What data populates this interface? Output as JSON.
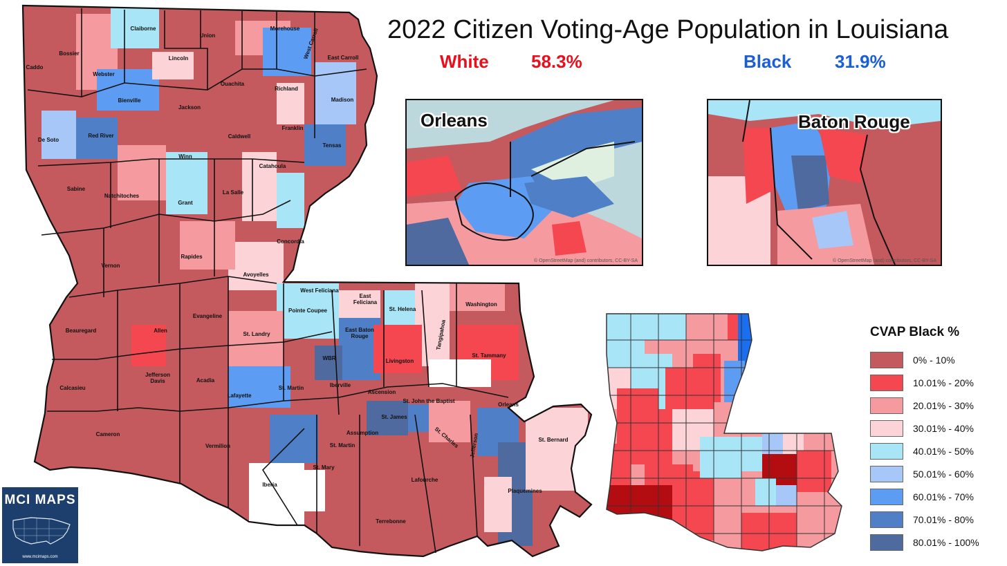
{
  "title": "2022 Citizen Voting-Age Population in Louisiana",
  "stats": {
    "white": {
      "label": "White",
      "value": "58.3%",
      "color": "#e8101c"
    },
    "black": {
      "label": "Black",
      "value": "31.9%",
      "color": "#1a5fd6"
    }
  },
  "insets": [
    {
      "label": "Orleans",
      "attribution": "© OpenStreetMap (and) contributors, CC-BY-SA"
    },
    {
      "label": "Baton Rouge",
      "attribution": "© OpenStreetMap (and) contributors, CC-BY-SA"
    }
  ],
  "legend": {
    "title": "CVAP Black  %",
    "items": [
      {
        "label": "0% - 10%",
        "color": "#c45a5e"
      },
      {
        "label": "10.01% - 20%",
        "color": "#f5474f"
      },
      {
        "label": "20.01% - 30%",
        "color": "#f59a9f"
      },
      {
        "label": "30.01% - 40%",
        "color": "#fcd3d6"
      },
      {
        "label": "40.01% - 50%",
        "color": "#a8e6f7"
      },
      {
        "label": "50.01% - 60%",
        "color": "#a6c7f7"
      },
      {
        "label": "60.01% - 70%",
        "color": "#5c9cf2"
      },
      {
        "label": "70.01% - 80%",
        "color": "#4f80c7"
      },
      {
        "label": "80.01% - 100%",
        "color": "#4f6a9e"
      }
    ]
  },
  "parishes": [
    {
      "name": "Caddo"
    },
    {
      "name": "Bossier"
    },
    {
      "name": "Webster"
    },
    {
      "name": "Claiborne"
    },
    {
      "name": "Union"
    },
    {
      "name": "Morehouse"
    },
    {
      "name": "West Carroll"
    },
    {
      "name": "East Carroll"
    },
    {
      "name": "Lincoln"
    },
    {
      "name": "Ouachita"
    },
    {
      "name": "Richland"
    },
    {
      "name": "Madison"
    },
    {
      "name": "Bienville"
    },
    {
      "name": "Jackson"
    },
    {
      "name": "Red River"
    },
    {
      "name": "De Soto"
    },
    {
      "name": "Caldwell"
    },
    {
      "name": "Franklin"
    },
    {
      "name": "Tensas"
    },
    {
      "name": "Winn"
    },
    {
      "name": "La Salle"
    },
    {
      "name": "Catahoula"
    },
    {
      "name": "Sabine"
    },
    {
      "name": "Natchitoches"
    },
    {
      "name": "Grant"
    },
    {
      "name": "Concordia"
    },
    {
      "name": "Rapides"
    },
    {
      "name": "Vernon"
    },
    {
      "name": "Avoyelles"
    },
    {
      "name": "West Feliciana"
    },
    {
      "name": "East\nFeliciana"
    },
    {
      "name": "St. Helena"
    },
    {
      "name": "Tangipahoa"
    },
    {
      "name": "Washington"
    },
    {
      "name": "Evangeline"
    },
    {
      "name": "Pointe Coupee"
    },
    {
      "name": "East Baton\nRouge"
    },
    {
      "name": "Beauregard"
    },
    {
      "name": "Allen"
    },
    {
      "name": "St. Landry"
    },
    {
      "name": "WBR"
    },
    {
      "name": "Livingston"
    },
    {
      "name": "St. Tammany"
    },
    {
      "name": "Calcasieu"
    },
    {
      "name": "Jefferson\nDavis"
    },
    {
      "name": "Acadia"
    },
    {
      "name": "Lafayette"
    },
    {
      "name": "St. Martin"
    },
    {
      "name": "Iberville"
    },
    {
      "name": "Ascension"
    },
    {
      "name": "St. John the Baptist"
    },
    {
      "name": "Orleans"
    },
    {
      "name": "St. James"
    },
    {
      "name": "Cameron"
    },
    {
      "name": "Vermilion"
    },
    {
      "name": "Assumption"
    },
    {
      "name": "St. Charles"
    },
    {
      "name": "St. Bernard"
    },
    {
      "name": "St. Martin"
    },
    {
      "name": "Jefferson"
    },
    {
      "name": "St. Mary"
    },
    {
      "name": "Iberia"
    },
    {
      "name": "Lafourche"
    },
    {
      "name": "Plaquemines"
    },
    {
      "name": "Terrebonne"
    }
  ],
  "badge": {
    "title": "MCI MAPS",
    "url": "www.mcimaps.com"
  }
}
